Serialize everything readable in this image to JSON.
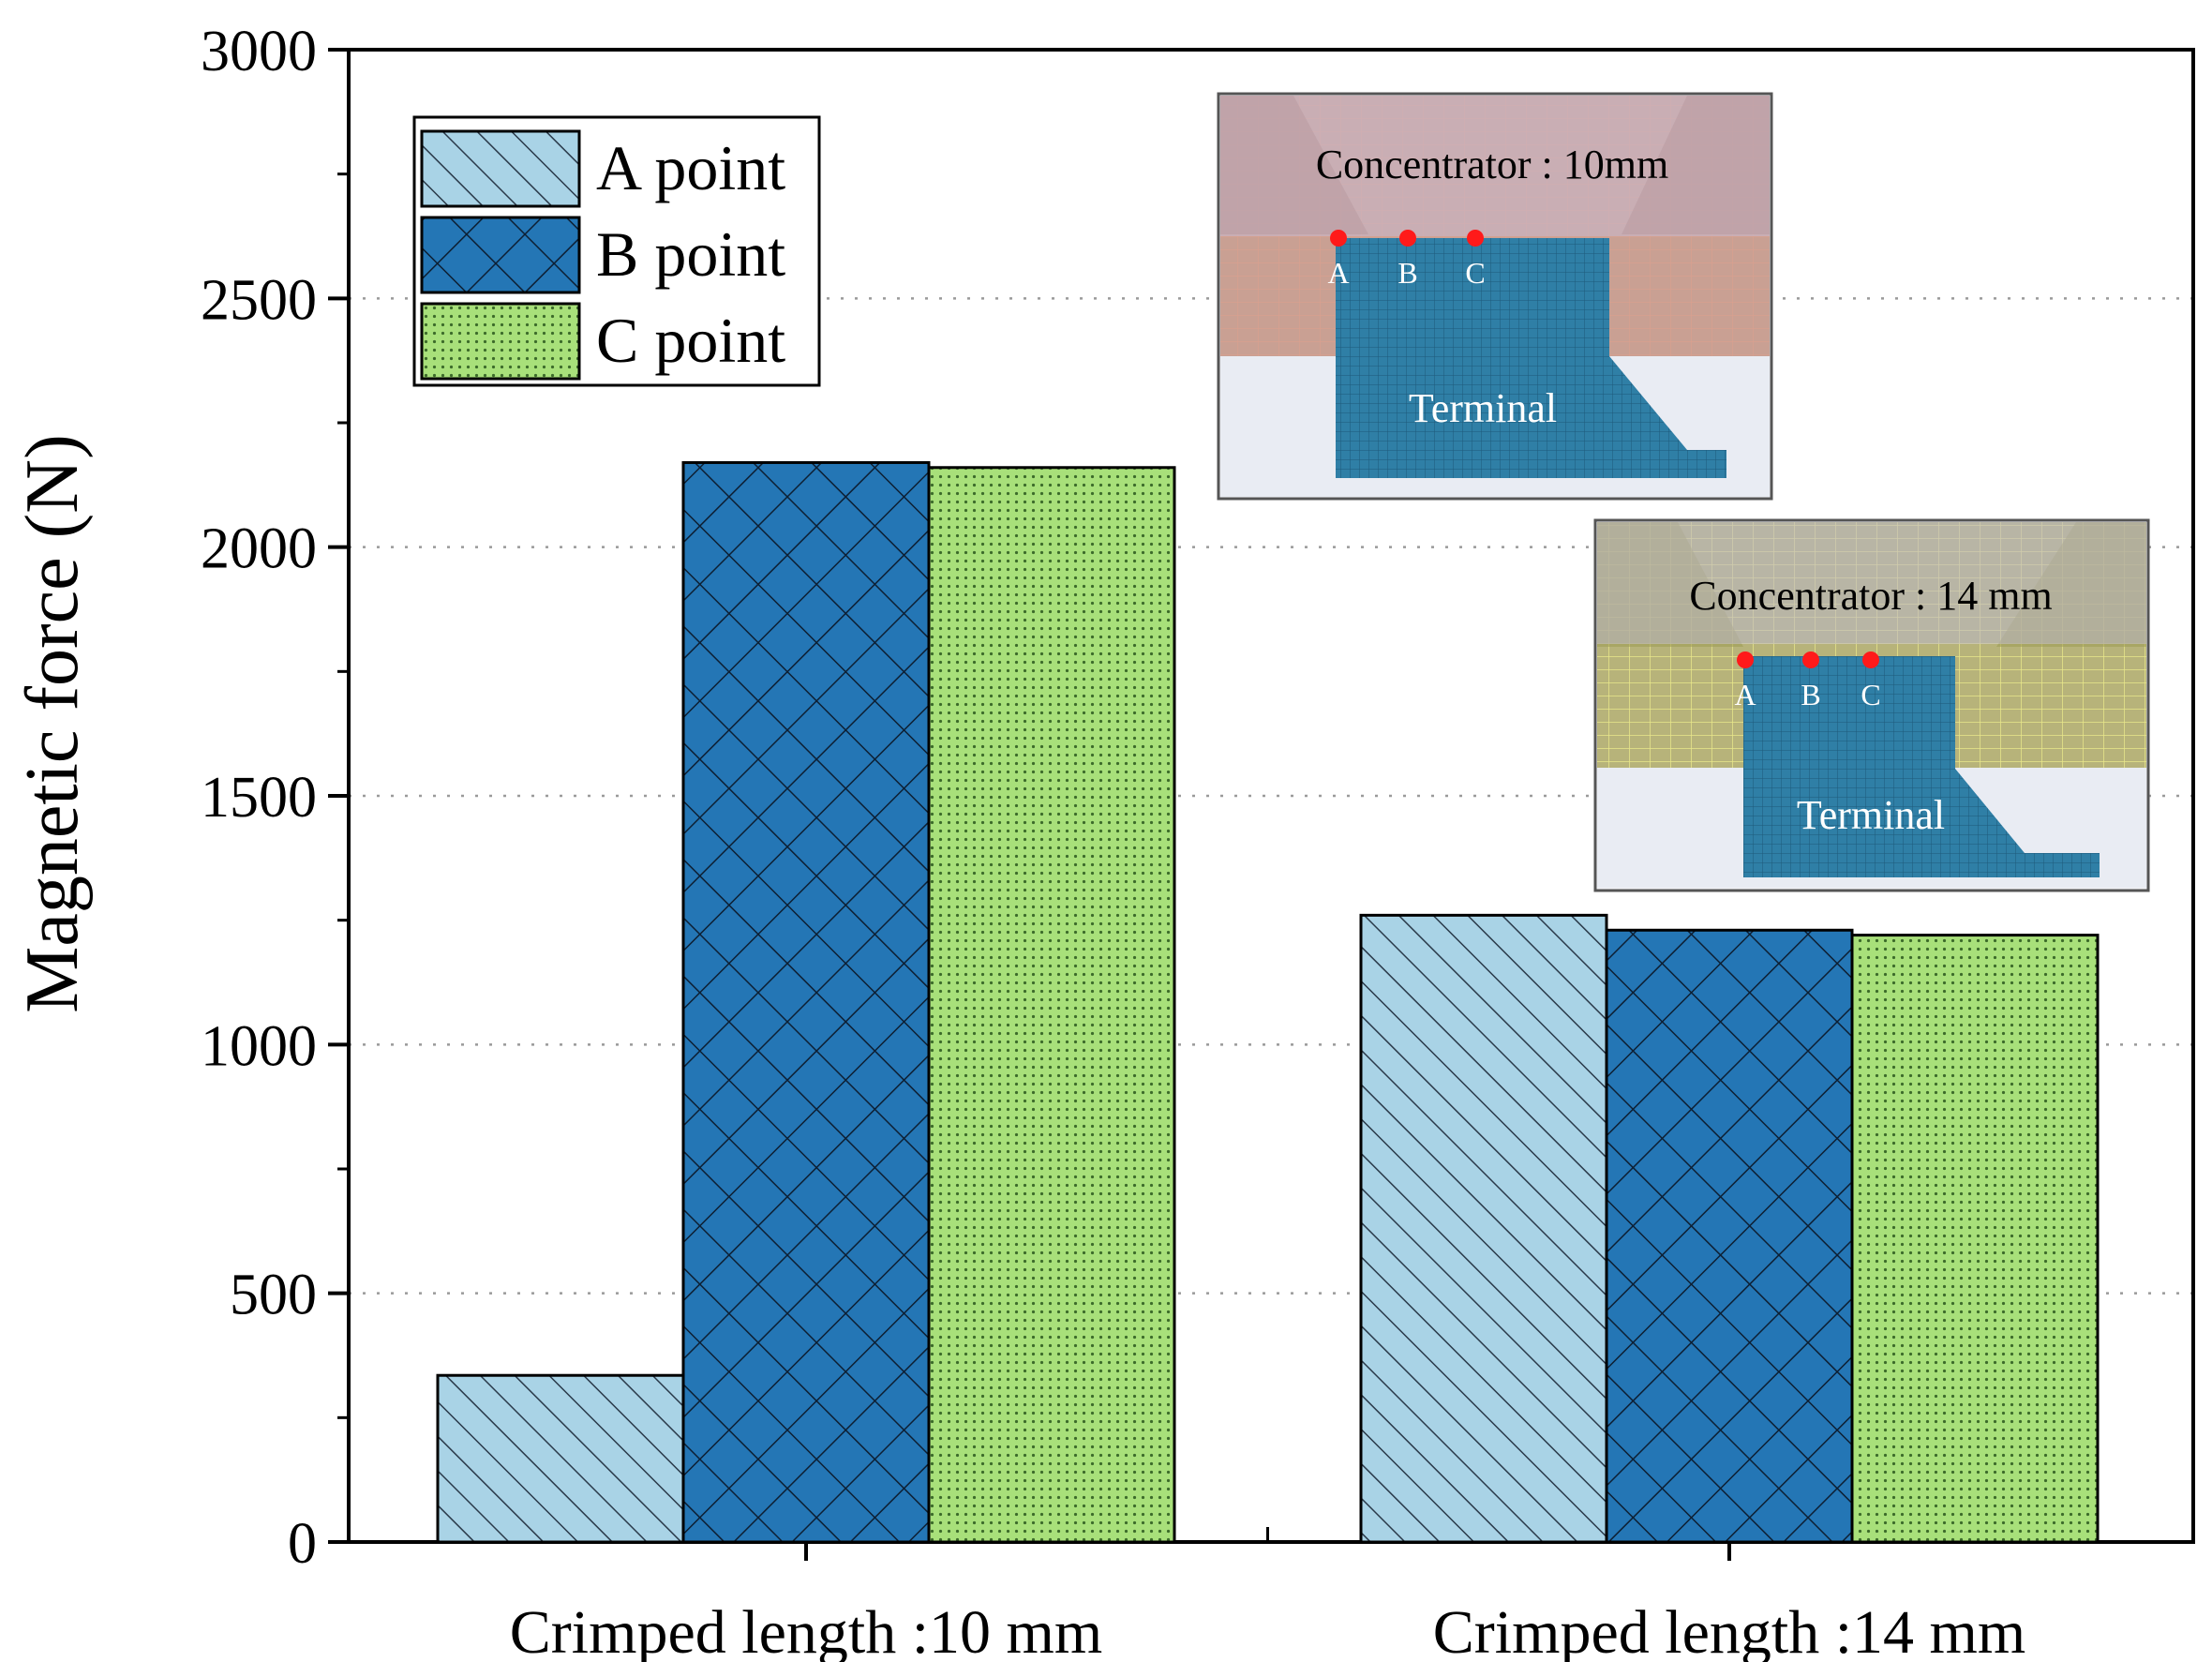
{
  "chart_data": {
    "type": "bar",
    "title": "",
    "xlabel": "",
    "ylabel": "Magnetic force (N)",
    "ylim": [
      0,
      3000
    ],
    "yticks": [
      0,
      500,
      1000,
      1500,
      2000,
      2500,
      3000
    ],
    "grid": "horizontal-dotted",
    "legend_position": "top-left",
    "categories": [
      "Crimped  length :10 mm",
      "Crimped  length :14 mm"
    ],
    "series": [
      {
        "name": "A point",
        "values": [
          335,
          1260
        ],
        "color": "#a9d3e6",
        "pattern": "diagonal-hatch"
      },
      {
        "name": "B point",
        "values": [
          2170,
          1230
        ],
        "color": "#2476b5",
        "pattern": "cross-hatch"
      },
      {
        "name": "C point",
        "values": [
          2160,
          1220
        ],
        "color": "#a8e07a",
        "pattern": "dots"
      }
    ]
  },
  "insets": [
    {
      "title": "Concentrator : 10mm",
      "terminal_label": "Terminal",
      "points": [
        "A",
        "B",
        "C"
      ],
      "concentrator_color": "#c48a7a"
    },
    {
      "title": "Concentrator : 14 mm",
      "terminal_label": "Terminal",
      "points": [
        "A",
        "B",
        "C"
      ],
      "concentrator_color": "#d9d66a"
    }
  ]
}
